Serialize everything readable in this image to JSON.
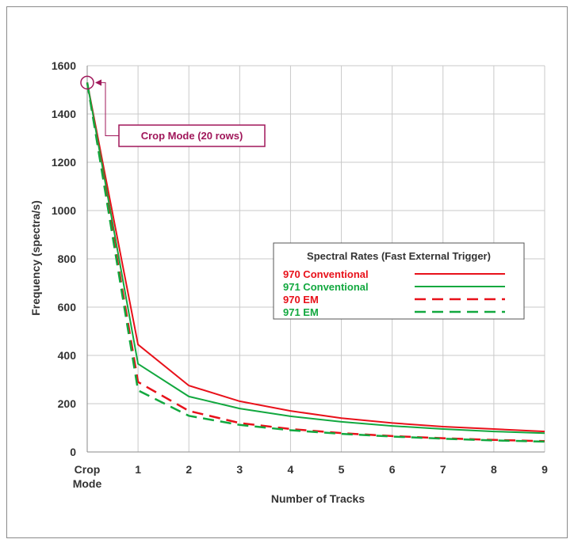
{
  "colors": {
    "red": "#e8111a",
    "green": "#12a83f",
    "callout": "#a0175a",
    "grid": "#c9c9c9",
    "text": "#333333"
  },
  "chart_data": {
    "type": "line",
    "xlabel": "Number of Tracks",
    "ylabel": "Frequency (spectra/s)",
    "x_tick_labels": [
      "Crop Mode",
      "1",
      "2",
      "3",
      "4",
      "5",
      "6",
      "7",
      "8",
      "9"
    ],
    "x": [
      0,
      1,
      2,
      3,
      4,
      5,
      6,
      7,
      8,
      9
    ],
    "y_ticks": [
      "0",
      "200",
      "400",
      "600",
      "800",
      "1000",
      "1200",
      "1400",
      "1600"
    ],
    "ylim": [
      0,
      1600
    ],
    "grid": true,
    "legend": {
      "title": "Spectral Rates (Fast External Trigger)",
      "placement": "center-right"
    },
    "series": [
      {
        "name": "970 Conventional",
        "color": "#e8111a",
        "style": "solid",
        "values": [
          1530,
          445,
          275,
          210,
          170,
          140,
          120,
          105,
          95,
          85
        ]
      },
      {
        "name": "971 Conventional",
        "color": "#12a83f",
        "style": "solid",
        "values": [
          1530,
          365,
          230,
          180,
          148,
          125,
          108,
          95,
          85,
          78
        ]
      },
      {
        "name": "970 EM",
        "color": "#e8111a",
        "style": "dashed",
        "values": [
          1530,
          290,
          170,
          120,
          95,
          78,
          66,
          57,
          50,
          45
        ]
      },
      {
        "name": "971 EM",
        "color": "#12a83f",
        "style": "dashed",
        "values": [
          1530,
          255,
          150,
          112,
          90,
          75,
          64,
          55,
          48,
          43
        ]
      }
    ],
    "annotation": {
      "text": "Crop Mode (20 rows)",
      "x": 0,
      "y": 1530,
      "color": "#a0175a"
    }
  }
}
